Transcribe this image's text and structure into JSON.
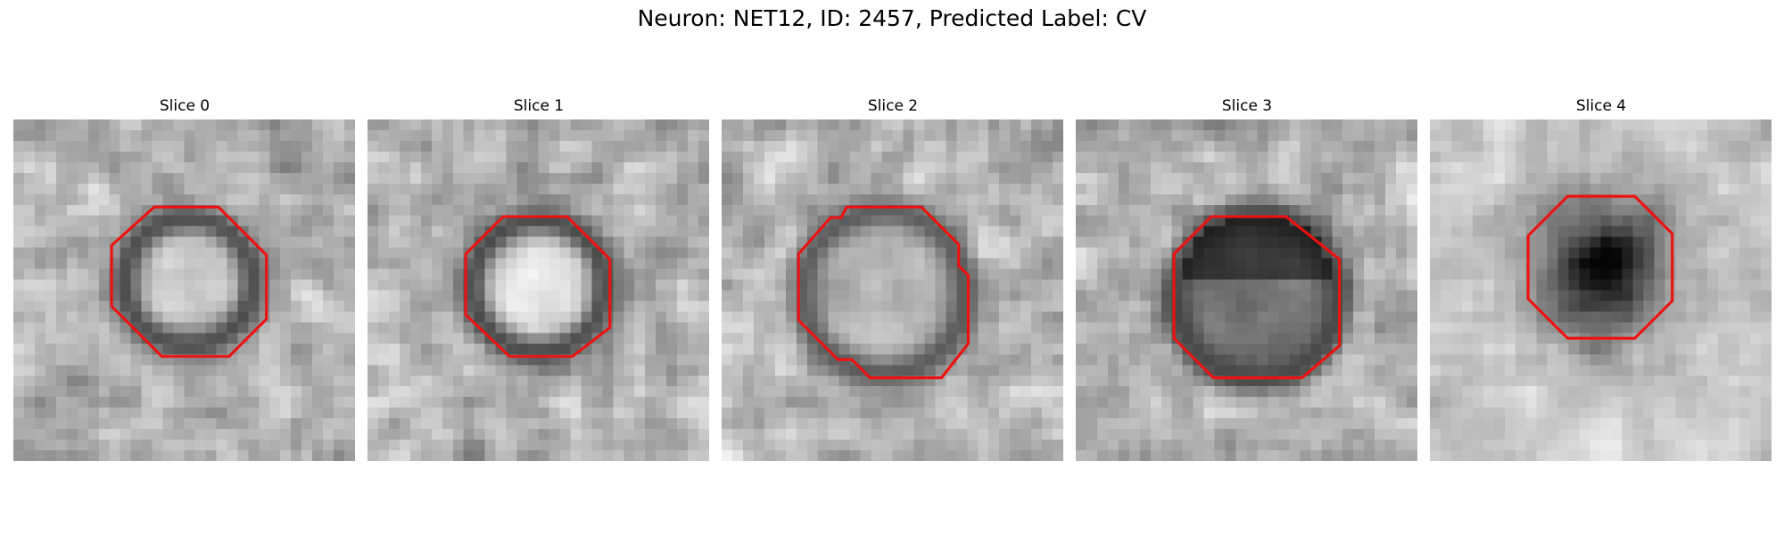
{
  "figure": {
    "title": "Neuron: NET12, ID: 2457, Predicted Label: CV",
    "contour_color": "#ee1111"
  },
  "panels": [
    {
      "title": "Slice 0",
      "contour_style": "octagon",
      "pattern": "ring-bright-center"
    },
    {
      "title": "Slice 1",
      "contour_style": "octagon",
      "pattern": "ring-bright-center"
    },
    {
      "title": "Slice 2",
      "contour_style": "irregular",
      "pattern": "ring-mid-center"
    },
    {
      "title": "Slice 3",
      "contour_style": "octagon",
      "pattern": "ring-dark-top"
    },
    {
      "title": "Slice 4",
      "contour_style": "octagon",
      "pattern": "dark-blob"
    }
  ]
}
